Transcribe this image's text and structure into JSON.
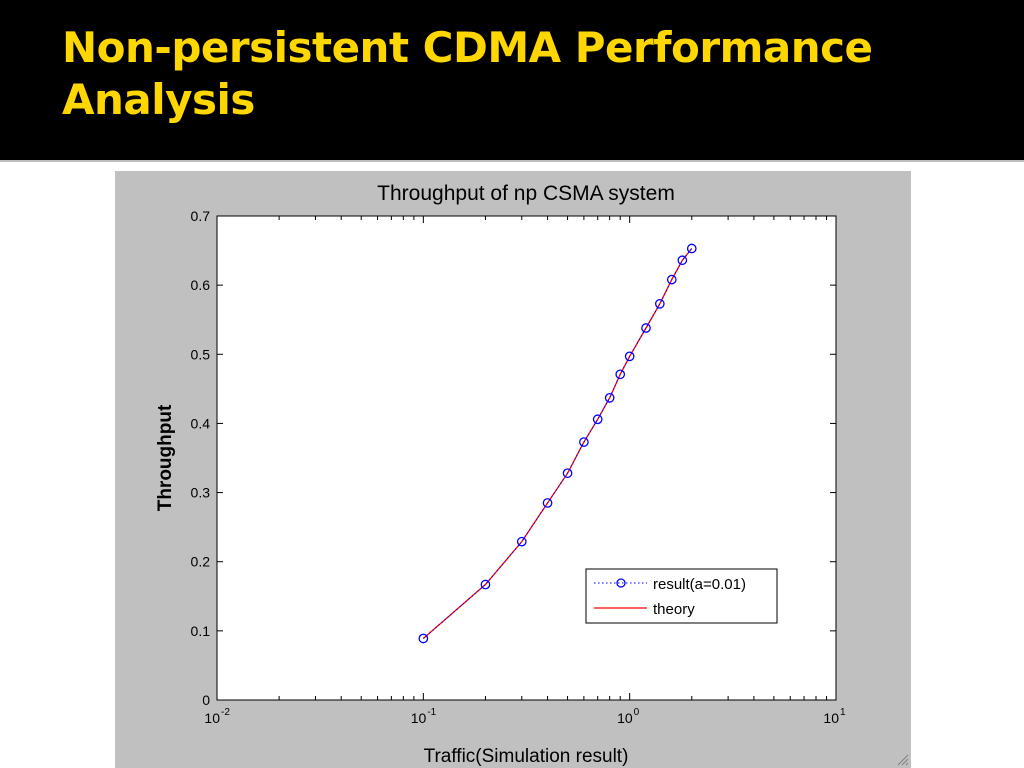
{
  "slide": {
    "title": "Non-persistent CDMA Performance Analysis"
  },
  "colors": {
    "title": "#FFD700",
    "figure_background": "#c0c0c0",
    "result_series": "#0000FF",
    "theory_series": "#FF0000"
  },
  "chart_data": {
    "type": "line",
    "title": "Throughput of np CSMA system",
    "xlabel": "Traffic(Simulation result)",
    "ylabel": "Throughput",
    "x_scale": "log",
    "xlim": [
      0.01,
      10
    ],
    "ylim": [
      0,
      0.7
    ],
    "grid": false,
    "legend_position": "lower-right",
    "x_ticks": [
      {
        "base": "10",
        "exp": "-2",
        "value": 0.01
      },
      {
        "base": "10",
        "exp": "-1",
        "value": 0.1
      },
      {
        "base": "10",
        "exp": "0",
        "value": 1
      },
      {
        "base": "10",
        "exp": "1",
        "value": 10
      }
    ],
    "y_ticks": [
      "0",
      "0.1",
      "0.2",
      "0.3",
      "0.4",
      "0.5",
      "0.6",
      "0.7"
    ],
    "series": [
      {
        "name": "result(a=0.01)",
        "style": "dotted-circle",
        "color": "#0000FF",
        "x": [
          0.1,
          0.2,
          0.3,
          0.4,
          0.5,
          0.6,
          0.7,
          0.8,
          0.9,
          1.0,
          1.2,
          1.4,
          1.6,
          1.8,
          2.0
        ],
        "y": [
          0.089,
          0.167,
          0.229,
          0.285,
          0.328,
          0.373,
          0.406,
          0.437,
          0.471,
          0.497,
          0.538,
          0.573,
          0.608,
          0.636,
          0.653
        ]
      },
      {
        "name": "theory",
        "style": "solid",
        "color": "#FF0000",
        "x": [
          0.1,
          0.2,
          0.3,
          0.4,
          0.5,
          0.6,
          0.7,
          0.8,
          0.9,
          1.0,
          1.2,
          1.4,
          1.6,
          1.8,
          2.0
        ],
        "y": [
          0.089,
          0.167,
          0.229,
          0.285,
          0.328,
          0.373,
          0.406,
          0.437,
          0.471,
          0.497,
          0.538,
          0.573,
          0.608,
          0.636,
          0.653
        ]
      }
    ]
  }
}
